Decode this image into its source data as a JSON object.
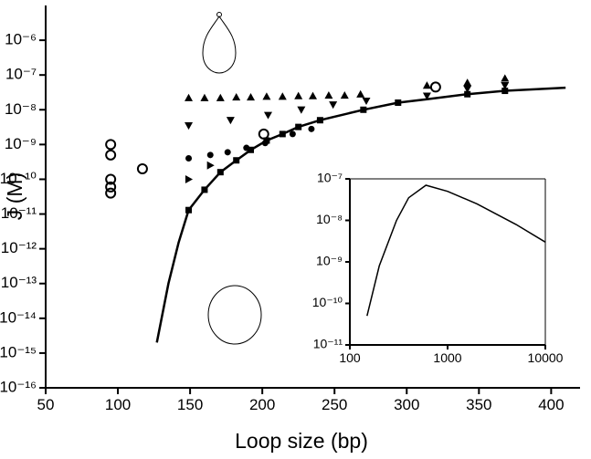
{
  "chart_data": [
    {
      "type": "scatter",
      "x_label": "Loop size (bp)",
      "y_label": "J (M)",
      "xlim": [
        50,
        420
      ],
      "ylim": [
        1e-16,
        1e-05
      ],
      "xlog": false,
      "ylog": true,
      "xticks": [
        50,
        100,
        150,
        200,
        250,
        300,
        350,
        400
      ],
      "yticks": [
        {
          "value": 1e-16,
          "label": "10⁻¹⁶"
        },
        {
          "value": 1e-15,
          "label": "10⁻¹⁵"
        },
        {
          "value": 1e-14,
          "label": "10⁻¹⁴"
        },
        {
          "value": 1e-13,
          "label": "10⁻¹³"
        },
        {
          "value": 1e-12,
          "label": "10⁻¹²"
        },
        {
          "value": 1e-11,
          "label": "10⁻¹¹"
        },
        {
          "value": 1e-10,
          "label": "10⁻¹⁰"
        },
        {
          "value": 1e-09,
          "label": "10⁻⁹"
        },
        {
          "value": 1e-08,
          "label": "10⁻⁸"
        },
        {
          "value": 1e-07,
          "label": "10⁻⁷"
        },
        {
          "value": 1e-06,
          "label": "10⁻⁶"
        }
      ],
      "series": [
        {
          "style": "line",
          "color": "#000000",
          "x": [
            127,
            135,
            142,
            149,
            160,
            171,
            182,
            192,
            203,
            214,
            225,
            240,
            270,
            294,
            314,
            342,
            368,
            410
          ],
          "values": [
            2e-15,
            1e-13,
            1.5e-12,
            1.3e-11,
            5e-11,
            1.6e-10,
            3.5e-10,
            7e-10,
            1.3e-09,
            2e-09,
            3.2e-09,
            5e-09,
            1e-08,
            1.6e-08,
            2e-08,
            2.8e-08,
            3.5e-08,
            4.3e-08
          ]
        },
        {
          "style": "square",
          "color": "#000000",
          "x": [
            149,
            160,
            171,
            182,
            192,
            203,
            214,
            225,
            240,
            270,
            294,
            342,
            368
          ],
          "values": [
            1.3e-11,
            5e-11,
            1.6e-10,
            3.5e-10,
            7e-10,
            1.3e-09,
            2e-09,
            3.2e-09,
            5e-09,
            1e-08,
            1.6e-08,
            2.8e-08,
            3.5e-08
          ]
        },
        {
          "style": "triangle-up",
          "color": "#000000",
          "x": [
            149,
            160,
            171,
            182,
            192,
            203,
            214,
            225,
            235,
            246,
            257,
            268,
            314,
            342,
            368
          ],
          "values": [
            2.2e-08,
            2.2e-08,
            2.2e-08,
            2.3e-08,
            2.3e-08,
            2.4e-08,
            2.4e-08,
            2.5e-08,
            2.5e-08,
            2.6e-08,
            2.6e-08,
            2.8e-08,
            5e-08,
            6e-08,
            8e-08
          ]
        },
        {
          "style": "triangle-down",
          "color": "#000000",
          "x": [
            149,
            178,
            204,
            227,
            249,
            272,
            314,
            342,
            368
          ],
          "values": [
            3.5e-09,
            5e-09,
            7e-09,
            1e-08,
            1.4e-08,
            1.8e-08,
            2.5e-08,
            4e-08,
            5e-08
          ]
        },
        {
          "style": "circle",
          "color": "#000000",
          "x": [
            149,
            164,
            176,
            189,
            202,
            221,
            234
          ],
          "values": [
            4e-10,
            5e-10,
            6e-10,
            8e-10,
            1.1e-09,
            2e-09,
            2.8e-09
          ]
        },
        {
          "style": "triangle-right",
          "color": "#000000",
          "x": [
            149,
            164
          ],
          "values": [
            1e-10,
            2.5e-10
          ]
        },
        {
          "style": "open-circle",
          "color": "#000000",
          "x": [
            95,
            95,
            95,
            95,
            95,
            117,
            201,
            320
          ],
          "values": [
            1e-09,
            5e-10,
            1e-10,
            6e-11,
            4e-11,
            2e-10,
            2e-09,
            4.5e-08
          ]
        }
      ]
    },
    {
      "type": "line",
      "xlim": [
        100,
        10000
      ],
      "ylim": [
        1e-11,
        1e-07
      ],
      "xlog": true,
      "ylog": true,
      "xticks": [
        100,
        1000,
        10000
      ],
      "yticks": [
        {
          "value": 1e-11,
          "label": "10⁻¹¹"
        },
        {
          "value": 1e-10,
          "label": "10⁻¹⁰"
        },
        {
          "value": 1e-09,
          "label": "10⁻⁹"
        },
        {
          "value": 1e-08,
          "label": "10⁻⁸"
        },
        {
          "value": 1e-07,
          "label": "10⁻⁷"
        }
      ],
      "series": [
        {
          "style": "line",
          "color": "#000000",
          "x": [
            150,
            200,
            300,
            400,
            600,
            1000,
            2000,
            5000,
            10000
          ],
          "values": [
            5e-11,
            8e-10,
            1e-08,
            3.5e-08,
            7e-08,
            5e-08,
            2.5e-08,
            8e-09,
            3e-09
          ]
        }
      ]
    }
  ]
}
